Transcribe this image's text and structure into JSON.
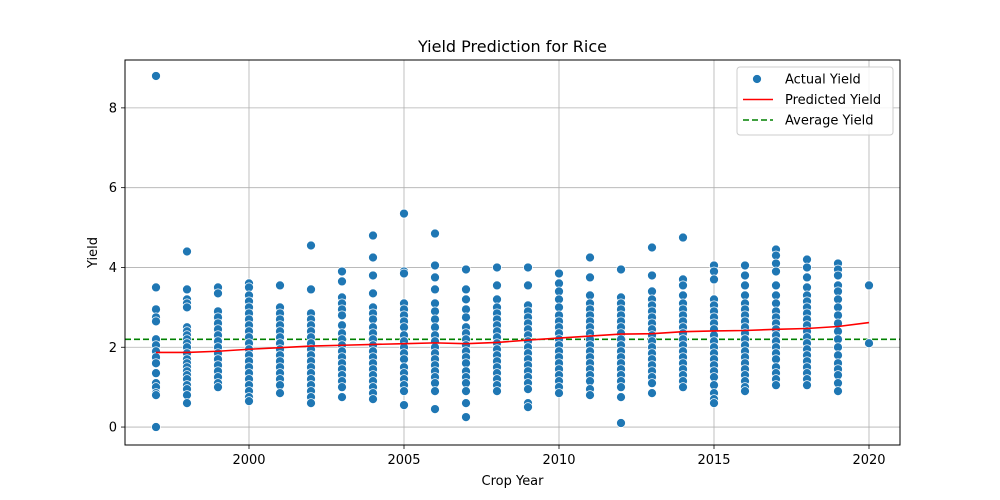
{
  "chart_data": {
    "type": "scatter",
    "title": "Yield Prediction for Rice",
    "xlabel": "Crop Year",
    "ylabel": "Yield",
    "xlim": [
      1996,
      2021
    ],
    "ylim": [
      -0.45,
      9.2
    ],
    "x_ticks": [
      2000,
      2005,
      2010,
      2015,
      2020
    ],
    "y_ticks": [
      0,
      2,
      4,
      6,
      8
    ],
    "grid": true,
    "legend_position": "top-right",
    "legend": [
      "Actual Yield",
      "Predicted Yield",
      "Average Yield"
    ],
    "colors": {
      "actual": "#1f77b4",
      "predicted": "#ff0000",
      "average": "#008000"
    },
    "actual_yield": [
      {
        "year": 1997,
        "values": [
          8.8,
          3.5,
          2.95,
          2.75,
          2.65,
          2.2,
          2.05,
          1.9,
          1.75,
          1.6,
          1.35,
          1.1,
          1.0,
          0.85,
          0.8,
          0.0
        ]
      },
      {
        "year": 1998,
        "values": [
          4.4,
          3.45,
          3.2,
          3.1,
          3.0,
          2.5,
          2.4,
          2.3,
          2.2,
          2.1,
          2.0,
          1.85,
          1.7,
          1.6,
          1.5,
          1.4,
          1.3,
          1.2,
          1.05,
          0.95,
          0.8,
          0.6
        ]
      },
      {
        "year": 1999,
        "values": [
          3.5,
          3.35,
          2.9,
          2.75,
          2.6,
          2.45,
          2.3,
          2.15,
          2.0,
          1.85,
          1.7,
          1.55,
          1.4,
          1.25,
          1.1,
          1.0
        ]
      },
      {
        "year": 2000,
        "values": [
          3.6,
          3.5,
          3.3,
          3.15,
          3.0,
          2.85,
          2.7,
          2.55,
          2.4,
          2.25,
          2.1,
          1.95,
          1.8,
          1.65,
          1.5,
          1.35,
          1.2,
          1.05,
          0.9,
          0.75,
          0.65
        ]
      },
      {
        "year": 2001,
        "values": [
          3.55,
          3.0,
          2.85,
          2.7,
          2.55,
          2.4,
          2.25,
          2.1,
          1.95,
          1.8,
          1.65,
          1.5,
          1.35,
          1.2,
          1.05,
          0.85
        ]
      },
      {
        "year": 2002,
        "values": [
          4.55,
          3.45,
          2.85,
          2.7,
          2.55,
          2.4,
          2.25,
          2.1,
          1.95,
          1.8,
          1.65,
          1.5,
          1.35,
          1.2,
          1.05,
          0.9,
          0.75,
          0.6
        ]
      },
      {
        "year": 2003,
        "values": [
          3.9,
          3.65,
          3.25,
          3.1,
          2.95,
          2.8,
          2.55,
          2.35,
          2.2,
          2.05,
          1.9,
          1.75,
          1.6,
          1.45,
          1.3,
          1.15,
          1.0,
          0.75
        ]
      },
      {
        "year": 2004,
        "values": [
          4.8,
          4.25,
          3.8,
          3.35,
          3.0,
          2.85,
          2.7,
          2.5,
          2.35,
          2.2,
          2.05,
          1.9,
          1.75,
          1.6,
          1.45,
          1.3,
          1.15,
          1.0,
          0.85,
          0.7
        ]
      },
      {
        "year": 2005,
        "values": [
          5.35,
          3.9,
          3.85,
          3.1,
          2.95,
          2.8,
          2.65,
          2.5,
          2.3,
          2.15,
          2.0,
          1.85,
          1.7,
          1.5,
          1.35,
          1.2,
          1.05,
          0.9,
          0.55
        ]
      },
      {
        "year": 2006,
        "values": [
          4.85,
          4.05,
          3.75,
          3.45,
          3.1,
          2.9,
          2.7,
          2.5,
          2.3,
          2.15,
          2.0,
          1.85,
          1.7,
          1.55,
          1.4,
          1.25,
          1.1,
          0.9,
          0.45
        ]
      },
      {
        "year": 2007,
        "values": [
          3.95,
          3.45,
          3.2,
          2.95,
          2.75,
          2.5,
          2.35,
          2.2,
          2.05,
          1.9,
          1.75,
          1.6,
          1.4,
          1.25,
          1.1,
          0.9,
          0.6,
          0.25
        ]
      },
      {
        "year": 2008,
        "values": [
          4.0,
          3.55,
          3.2,
          3.0,
          2.85,
          2.7,
          2.55,
          2.4,
          2.25,
          2.1,
          1.95,
          1.8,
          1.65,
          1.5,
          1.35,
          1.2,
          1.05,
          0.9
        ]
      },
      {
        "year": 2009,
        "values": [
          4.0,
          3.55,
          3.05,
          2.9,
          2.75,
          2.6,
          2.45,
          2.3,
          2.15,
          2.0,
          1.85,
          1.7,
          1.55,
          1.4,
          1.25,
          1.1,
          0.95,
          0.6,
          0.5
        ]
      },
      {
        "year": 2010,
        "values": [
          3.85,
          3.6,
          3.4,
          3.2,
          3.0,
          2.8,
          2.65,
          2.5,
          2.35,
          2.2,
          2.05,
          1.9,
          1.75,
          1.6,
          1.45,
          1.3,
          1.15,
          1.0,
          0.85
        ]
      },
      {
        "year": 2011,
        "values": [
          4.25,
          3.75,
          3.3,
          3.1,
          2.95,
          2.8,
          2.65,
          2.5,
          2.35,
          2.2,
          2.05,
          1.9,
          1.75,
          1.6,
          1.45,
          1.3,
          1.15,
          0.95,
          0.8
        ]
      },
      {
        "year": 2012,
        "values": [
          3.95,
          3.25,
          3.1,
          2.95,
          2.8,
          2.65,
          2.5,
          2.35,
          2.2,
          2.05,
          1.9,
          1.75,
          1.6,
          1.45,
          1.3,
          1.15,
          1.0,
          0.75,
          0.1
        ]
      },
      {
        "year": 2013,
        "values": [
          4.5,
          3.8,
          3.4,
          3.2,
          3.05,
          2.9,
          2.75,
          2.6,
          2.45,
          2.3,
          2.15,
          2.0,
          1.85,
          1.7,
          1.55,
          1.4,
          1.25,
          1.1,
          0.85
        ]
      },
      {
        "year": 2014,
        "values": [
          4.75,
          3.7,
          3.55,
          3.3,
          3.1,
          2.95,
          2.8,
          2.65,
          2.5,
          2.35,
          2.2,
          2.05,
          1.9,
          1.75,
          1.6,
          1.45,
          1.3,
          1.15,
          1.0
        ]
      },
      {
        "year": 2015,
        "values": [
          4.05,
          3.9,
          3.7,
          3.2,
          3.05,
          2.9,
          2.75,
          2.6,
          2.45,
          2.3,
          2.15,
          2.0,
          1.85,
          1.7,
          1.55,
          1.4,
          1.25,
          1.05,
          0.85,
          0.7,
          0.6
        ]
      },
      {
        "year": 2016,
        "values": [
          4.05,
          3.8,
          3.55,
          3.3,
          3.1,
          2.95,
          2.8,
          2.65,
          2.5,
          2.35,
          2.2,
          2.05,
          1.9,
          1.75,
          1.6,
          1.45,
          1.3,
          1.15,
          1.0,
          0.9
        ]
      },
      {
        "year": 2017,
        "values": [
          4.45,
          4.3,
          4.1,
          3.9,
          3.55,
          3.3,
          3.1,
          2.9,
          2.75,
          2.6,
          2.45,
          2.3,
          2.15,
          2.0,
          1.85,
          1.7,
          1.5,
          1.35,
          1.2,
          1.05
        ]
      },
      {
        "year": 2018,
        "values": [
          4.2,
          4.0,
          3.75,
          3.5,
          3.3,
          3.15,
          3.0,
          2.85,
          2.7,
          2.55,
          2.4,
          2.25,
          2.1,
          1.95,
          1.8,
          1.65,
          1.5,
          1.35,
          1.2,
          1.05
        ]
      },
      {
        "year": 2019,
        "values": [
          4.1,
          3.95,
          3.8,
          3.55,
          3.4,
          3.2,
          3.0,
          2.8,
          2.6,
          2.4,
          2.2,
          2.0,
          1.8,
          1.6,
          1.45,
          1.3,
          1.1,
          0.9
        ]
      },
      {
        "year": 2020,
        "values": [
          3.55,
          2.1
        ]
      }
    ],
    "predicted_yield": {
      "x": [
        1997,
        1998,
        1999,
        2000,
        2001,
        2002,
        2003,
        2004,
        2005,
        2006,
        2007,
        2008,
        2009,
        2010,
        2011,
        2012,
        2013,
        2014,
        2015,
        2016,
        2017,
        2018,
        2019,
        2020
      ],
      "y": [
        1.87,
        1.87,
        1.9,
        1.95,
        1.99,
        2.03,
        2.05,
        2.07,
        2.09,
        2.11,
        2.09,
        2.12,
        2.18,
        2.23,
        2.28,
        2.33,
        2.34,
        2.39,
        2.41,
        2.42,
        2.45,
        2.47,
        2.52,
        2.62
      ]
    },
    "average_yield": 2.2
  }
}
